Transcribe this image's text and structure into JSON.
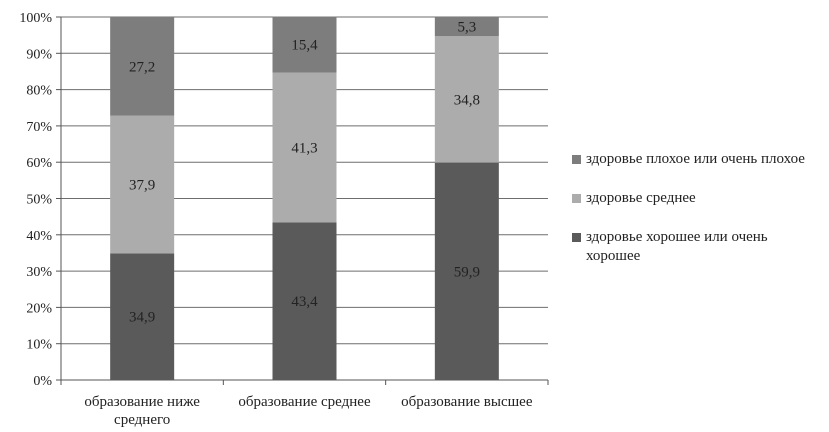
{
  "chart_data": {
    "type": "bar",
    "stacked": true,
    "percent": true,
    "categories": [
      [
        "образование ниже",
        "среднего"
      ],
      [
        "образование среднее"
      ],
      [
        "образование высшее"
      ]
    ],
    "series": [
      {
        "name": "здоровье хорошее или очень хорошее",
        "values": [
          34.9,
          43.4,
          59.9
        ],
        "labels": [
          "34,9",
          "43,4",
          "59,9"
        ],
        "color": "#5a5a5a"
      },
      {
        "name": "здоровье среднее",
        "values": [
          37.9,
          41.3,
          34.8
        ],
        "labels": [
          "37,9",
          "41,3",
          "34,8"
        ],
        "color": "#acacac"
      },
      {
        "name": "здоровье плохое или очень плохое",
        "values": [
          27.2,
          15.4,
          5.3
        ],
        "labels": [
          "27,2",
          "15,4",
          "5,3"
        ],
        "color": "#7d7d7d"
      }
    ],
    "ylim": [
      0,
      100
    ],
    "yticks": [
      "0%",
      "10%",
      "20%",
      "30%",
      "40%",
      "50%",
      "60%",
      "70%",
      "80%",
      "90%",
      "100%"
    ],
    "grid": true,
    "legend_position": "right",
    "legend_order": [
      2,
      1,
      0
    ]
  }
}
